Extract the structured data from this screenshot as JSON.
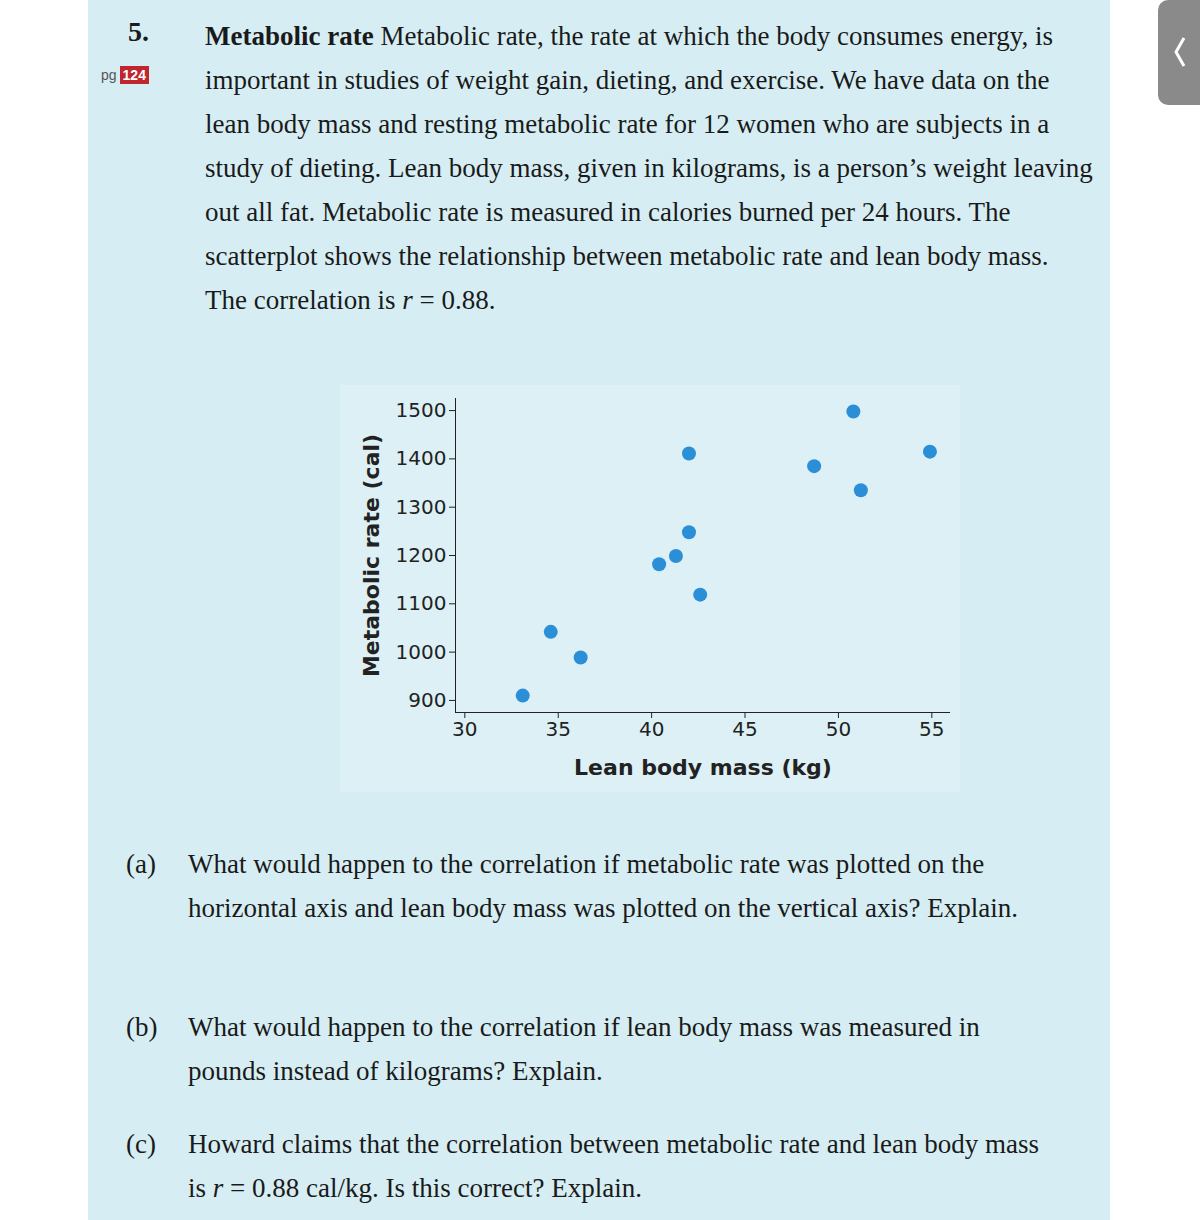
{
  "exercise": {
    "number": "5.",
    "page_word": "pg",
    "page_number": "124",
    "title": "Metabolic rate",
    "text": "Metabolic rate, the rate at which the body consumes energy, is important in studies of weight gain, dieting, and exercise. We have data on the lean body mass and resting metabolic rate for 12 women who are subjects in a study of dieting. Lean body mass, given in kilograms, is a person’s weight leaving out all fat. Metabolic rate is measured in calories burned per 24 hours. The scatterplot shows the relationship between metabolic rate and lean body mass. The correlation is",
    "formula_variable": "r",
    "formula_rest": " = 0.88.",
    "questions": [
      {
        "label": "(a)",
        "text": "What would happen to the correlation if metabolic rate was plotted on the horizontal axis and lean body mass was plotted on the vertical axis? Explain."
      },
      {
        "label": "(b)",
        "text": "What would happen to the correlation if lean body mass was measured in pounds instead of kilograms? Explain."
      },
      {
        "label": "(c)",
        "text": "Howard claims that the correlation between metabolic rate and lean body mass is ",
        "variable": "r",
        "text_after": " = 0.88 cal/kg. Is this correct? Explain."
      }
    ]
  },
  "chart_data": {
    "type": "scatter",
    "x_label": "Lean body mass (kg)",
    "y_label": "Metabolic rate (cal)",
    "x": [
      33.1,
      34.6,
      36.2,
      40.4,
      41.3,
      42.0,
      42.0,
      42.6,
      48.7,
      50.8,
      51.2,
      54.9
    ],
    "values": [
      910,
      1042,
      989,
      1182,
      1199,
      1248,
      1411,
      1119,
      1385,
      1498,
      1335,
      1415
    ],
    "color": "#2b8fd8",
    "marker": "circle",
    "xlim": [
      29.5,
      56
    ],
    "ylim": [
      875,
      1525
    ],
    "xticks": [
      30,
      35,
      40,
      45,
      50,
      55
    ],
    "yticks": [
      900,
      1000,
      1100,
      1200,
      1300,
      1400,
      1500
    ],
    "grid": false
  }
}
